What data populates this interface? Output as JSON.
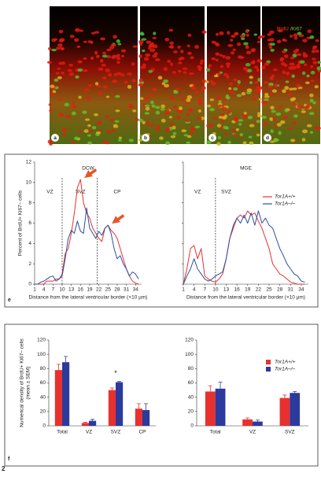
{
  "figure_number": "2",
  "image_panel": {
    "labels": [
      "a",
      "b",
      "c",
      "d"
    ],
    "stain_label": [
      "BrdU",
      "/Ki67"
    ]
  },
  "panel_labels": [
    "e",
    "f"
  ],
  "chart_data": [
    {
      "type": "line",
      "title": "DCW",
      "xlabel": "Distance from the lateral ventricular border (×10 µm)",
      "ylabel": "Percent of BrdU+ Ki67– cells",
      "x": [
        1,
        2,
        3,
        4,
        5,
        6,
        7,
        8,
        9,
        10,
        11,
        12,
        13,
        14,
        15,
        16,
        17,
        18,
        19,
        20,
        21,
        22,
        23,
        24,
        25,
        26,
        27,
        28,
        29,
        30,
        31,
        32,
        33,
        34,
        35
      ],
      "series": [
        {
          "name": "Tor1A+/+",
          "color": "#e8312f",
          "values": [
            0,
            0,
            0,
            0,
            0.3,
            0.3,
            0.3,
            0.5,
            0.5,
            1,
            3,
            3.5,
            5,
            7,
            9.5,
            10.3,
            8,
            7,
            6.5,
            5.5,
            5,
            4.5,
            4.2,
            5.5,
            5.8,
            5.3,
            5,
            4.5,
            3.5,
            2.5,
            1.5,
            0.8,
            0.3,
            0.1,
            0
          ]
        },
        {
          "name": "Tor1A–/–",
          "color": "#2a4fa0",
          "values": [
            0,
            0,
            0.2,
            0.3,
            0.5,
            0.7,
            0.8,
            0.3,
            0.5,
            0.8,
            2.5,
            4.5,
            5.3,
            5,
            6.2,
            5.2,
            5,
            7.5,
            5.5,
            5,
            4.5,
            5.2,
            4.8,
            5.5,
            5.8,
            5,
            3.5,
            2.5,
            2.8,
            2,
            1.5,
            0.8,
            1.2,
            1,
            0.5
          ]
        }
      ],
      "xlim": [
        1,
        36
      ],
      "xticks": [
        1,
        4,
        7,
        10,
        13,
        16,
        19,
        22,
        25,
        28,
        31,
        34
      ],
      "ylim": [
        0,
        12
      ],
      "yticks": [
        0,
        2,
        4,
        6,
        8,
        10,
        12
      ],
      "ytick_labels": true,
      "vlines": [
        10,
        21.5
      ],
      "annotations": [
        {
          "text": "VZ",
          "x": 6
        },
        {
          "text": "SVZ",
          "x": 16
        },
        {
          "text": "CP",
          "x": 28
        }
      ],
      "arrows": [
        {
          "x": 16.5,
          "y": 10.3
        },
        {
          "x": 25.5,
          "y": 5.8
        }
      ],
      "legend": false
    },
    {
      "type": "line",
      "title": "MGE",
      "xlabel": "Distance from the lateral ventricular border (×10 µm)",
      "x": [
        1,
        2,
        3,
        4,
        5,
        6,
        7,
        8,
        9,
        10,
        11,
        12,
        13,
        14,
        15,
        16,
        17,
        18,
        19,
        20,
        21,
        22,
        23,
        24,
        25,
        26,
        27,
        28,
        29,
        30,
        31,
        32,
        33,
        34,
        35
      ],
      "series": [
        {
          "name": "Tor1A+/+",
          "color": "#e8312f",
          "values": [
            0,
            1.5,
            3.5,
            3.8,
            2.5,
            3.5,
            0.8,
            0.5,
            0.3,
            0.2,
            0.5,
            1,
            2.5,
            4.5,
            5.5,
            6.5,
            6.8,
            6.5,
            7.2,
            6.8,
            7,
            6.2,
            5.5,
            4.5,
            3.5,
            2,
            1.5,
            1,
            0.8,
            0.5,
            0.2,
            0.1,
            0,
            0,
            0
          ]
        },
        {
          "name": "Tor1A–/–",
          "color": "#2a4fa0",
          "values": [
            0,
            0.8,
            1.5,
            2.5,
            1.5,
            1,
            0.5,
            0.3,
            0.5,
            0.8,
            1,
            1.2,
            2.5,
            4.5,
            5.8,
            6.5,
            6,
            6.8,
            6,
            7,
            5.8,
            7.2,
            6,
            6.5,
            5.8,
            5.5,
            4.5,
            3.5,
            2.8,
            2,
            1.5,
            1,
            0.8,
            0.3,
            0.2
          ]
        }
      ],
      "xlim": [
        1,
        36
      ],
      "xticks": [
        1,
        4,
        7,
        10,
        13,
        16,
        19,
        22,
        25,
        28,
        31,
        34
      ],
      "ylim": [
        0,
        12
      ],
      "yticks": [
        0,
        2,
        4,
        6,
        8,
        10,
        12
      ],
      "ytick_labels": false,
      "vlines": [
        10
      ],
      "annotations": [
        {
          "text": "VZ",
          "x": 5
        },
        {
          "text": "SVZ",
          "x": 13
        }
      ],
      "legend": "upper right"
    },
    {
      "type": "bar",
      "ylabel": [
        "Numerical density of BrdU+ Ki67– cells",
        "(mean ± SEM)"
      ],
      "categories": [
        "Total",
        "VZ",
        "SVZ",
        "CP"
      ],
      "series": [
        {
          "name": "Tor1A+/+",
          "color": "#e8312f",
          "values": [
            78,
            4,
            50,
            24
          ],
          "errors": [
            8,
            1,
            3,
            7
          ]
        },
        {
          "name": "Tor1A–/–",
          "color": "#2b3a9c",
          "values": [
            89,
            7,
            61,
            22
          ],
          "errors": [
            8,
            2,
            1,
            9
          ]
        }
      ],
      "ylim": [
        0,
        120
      ],
      "yticks": [
        0,
        20,
        40,
        60,
        80,
        100,
        120
      ],
      "ytick_labels": true,
      "annotations": [
        {
          "text": "*",
          "category": 2
        }
      ],
      "legend": false
    },
    {
      "type": "bar",
      "categories": [
        "Total",
        "VZ",
        "SVZ"
      ],
      "series": [
        {
          "name": "Tor1A+/+",
          "color": "#e8312f",
          "values": [
            48,
            9,
            39
          ],
          "errors": [
            8,
            2,
            4
          ]
        },
        {
          "name": "Tor1A–/–",
          "color": "#2b3a9c",
          "values": [
            52,
            6,
            46
          ],
          "errors": [
            9,
            2,
            2
          ]
        }
      ],
      "ylim": [
        0,
        120
      ],
      "yticks": [
        0,
        20,
        40,
        60,
        80,
        100,
        120
      ],
      "ytick_labels": true,
      "legend": "upper right"
    }
  ]
}
